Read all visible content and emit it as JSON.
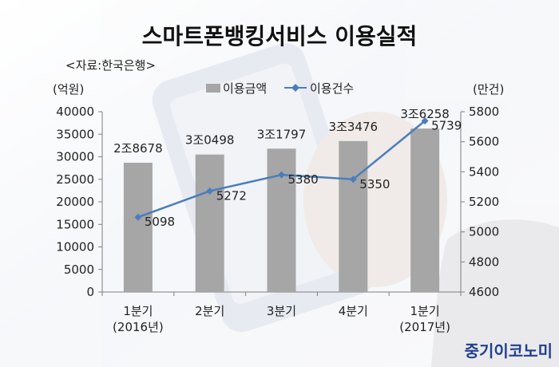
{
  "chart_data": {
    "type": "bar+line",
    "title": "스마트폰뱅킹서비스 이용실적",
    "subtitle": "<자료:한국은행>",
    "ylabel_left": "(억원)",
    "ylabel_right": "(만건)",
    "categories": [
      {
        "line1": "1분기",
        "line2": "(2016년)"
      },
      {
        "line1": "2분기",
        "line2": ""
      },
      {
        "line1": "3분기",
        "line2": ""
      },
      {
        "line1": "4분기",
        "line2": ""
      },
      {
        "line1": "1분기",
        "line2": "(2017년)"
      }
    ],
    "left_axis": {
      "min": 0,
      "max": 40000,
      "step": 5000,
      "ticks": [
        "0",
        "5000",
        "10000",
        "15000",
        "20000",
        "25000",
        "30000",
        "35000",
        "40000"
      ]
    },
    "right_axis": {
      "min": 4600,
      "max": 5800,
      "step": 200,
      "ticks": [
        "4600",
        "4800",
        "5000",
        "5200",
        "5400",
        "5600",
        "5800"
      ]
    },
    "series": [
      {
        "name": "이용금액",
        "kind": "bar",
        "axis": "left",
        "color": "#a6a6a6",
        "values": [
          28678,
          30498,
          31797,
          33476,
          36258
        ],
        "labels": [
          "2조8678",
          "3조0498",
          "3조1797",
          "3조3476",
          "3조6258"
        ]
      },
      {
        "name": "이용건수",
        "kind": "line",
        "axis": "right",
        "color": "#4a7ebb",
        "values": [
          5098,
          5272,
          5380,
          5350,
          5739
        ],
        "labels": [
          "5098",
          "5272",
          "5380",
          "5350",
          "5739"
        ]
      }
    ],
    "legend_position": "top-center",
    "grid": false
  },
  "watermark": {
    "text": "중기이코노미",
    "color": "#1f3f8f"
  }
}
